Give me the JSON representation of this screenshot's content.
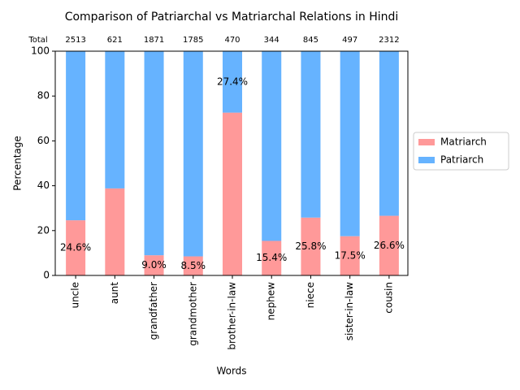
{
  "chart_data": {
    "type": "stacked-bar-percent",
    "title": "Comparison of Patriarchal vs Matriarchal Relations in Hindi",
    "x_label": "Words",
    "y_label": "Percentage",
    "categories": [
      "uncle",
      "aunt",
      "grandfather",
      "grandmother",
      "brother-in-law",
      "nephew",
      "niece",
      "sister-in-law",
      "cousin"
    ],
    "series": [
      {
        "name": "Matriarch",
        "color": "#ff9999",
        "values": [
          24.6,
          38.8,
          9.0,
          8.5,
          72.6,
          15.4,
          25.8,
          17.5,
          26.6
        ],
        "value_labels": [
          "24.6%",
          null,
          "9.0%",
          "8.5%",
          null,
          "15.4%",
          "25.8%",
          "17.5%",
          "26.6%"
        ]
      },
      {
        "name": "Patriarch",
        "color": "#66b3ff",
        "values": [
          75.4,
          61.2,
          91.0,
          91.5,
          27.4,
          84.6,
          74.2,
          82.5,
          73.4
        ],
        "value_labels": [
          null,
          null,
          null,
          null,
          "27.4%",
          null,
          null,
          null,
          null
        ]
      }
    ],
    "totals_label": "Total",
    "totals": [
      2513,
      621,
      1871,
      1785,
      470,
      344,
      845,
      497,
      2312
    ],
    "ylim": [
      0,
      100
    ],
    "yticks": [
      0,
      20,
      40,
      60,
      80,
      100
    ],
    "legend": "right"
  }
}
